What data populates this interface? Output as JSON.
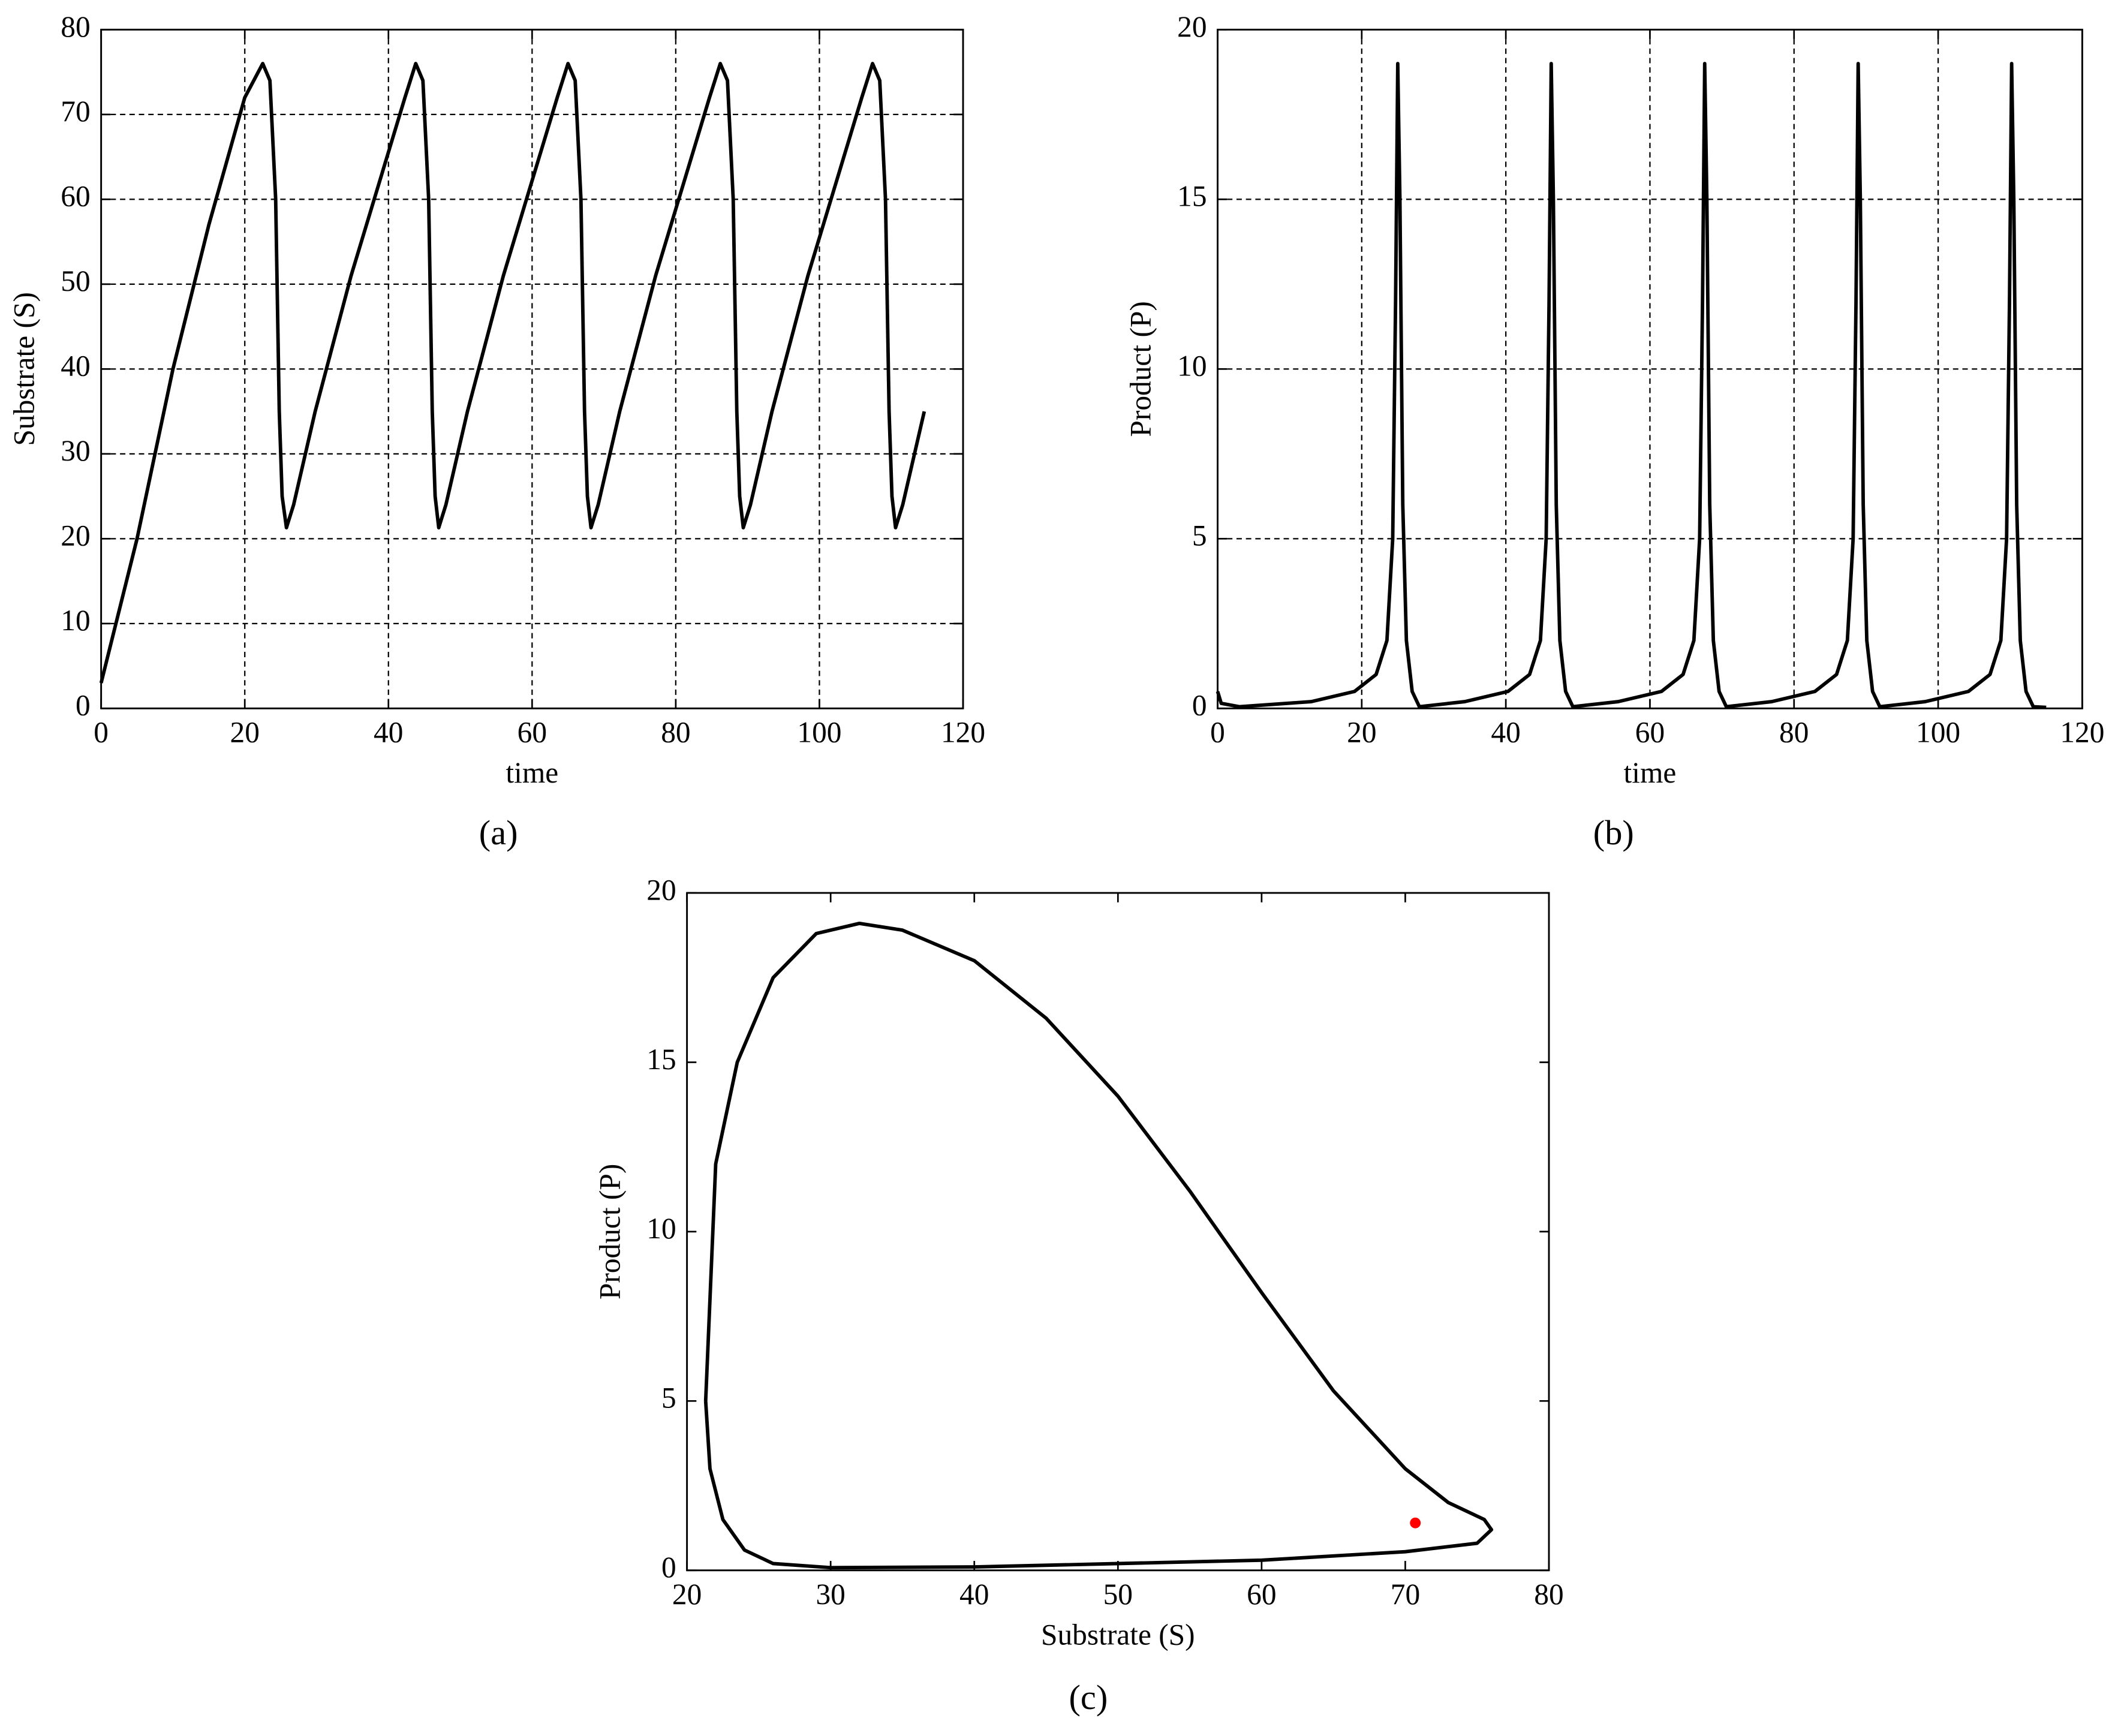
{
  "chart_data": [
    {
      "type": "line",
      "caption": "(a)",
      "xlabel": "time",
      "ylabel": "Substrate (S)",
      "xlim": [
        0,
        120
      ],
      "xticks": [
        0,
        20,
        40,
        60,
        80,
        100,
        120
      ],
      "ylim": [
        0,
        80
      ],
      "yticks": [
        0,
        10,
        20,
        30,
        40,
        50,
        60,
        70,
        80
      ],
      "grid": true,
      "color": "#000000",
      "x": [
        0,
        5,
        10,
        15,
        18,
        20,
        22.5,
        23.5,
        24.3,
        24.8,
        25.2,
        25.8,
        26.8,
        29.8,
        34.8,
        39.8,
        42.3,
        43.8,
        44.8,
        45.6,
        46.1,
        46.5,
        47.0,
        48.0,
        51.0,
        56.0,
        61.0,
        63.5,
        65.0,
        66.0,
        66.8,
        67.3,
        67.7,
        68.2,
        69.2,
        72.2,
        77.2,
        82.2,
        84.7,
        86.2,
        87.2,
        88.0,
        88.5,
        88.9,
        89.4,
        90.4,
        93.4,
        98.4,
        103.4,
        105.9,
        107.4,
        108.4,
        109.2,
        109.7,
        110.1,
        110.6,
        111.6,
        114.6
      ],
      "values": [
        3,
        20,
        40,
        57,
        66,
        72,
        76,
        74,
        60,
        35,
        25,
        21.3,
        24,
        35,
        51,
        65,
        72,
        76,
        74,
        60,
        35,
        25,
        21.3,
        24,
        35,
        51,
        65,
        72,
        76,
        74,
        60,
        35,
        25,
        21.3,
        24,
        35,
        51,
        65,
        72,
        76,
        74,
        60,
        35,
        25,
        21.3,
        24,
        35,
        51,
        65,
        72,
        76,
        74,
        60,
        35,
        25,
        21.3,
        24,
        35
      ]
    },
    {
      "type": "line",
      "caption": "(b)",
      "xlabel": "time",
      "ylabel": "Product (P)",
      "xlim": [
        0,
        120
      ],
      "xticks": [
        0,
        20,
        40,
        60,
        80,
        100,
        120
      ],
      "ylim": [
        0,
        20
      ],
      "yticks": [
        0,
        5,
        10,
        15,
        20
      ],
      "grid": true,
      "color": "#000000",
      "x": [
        0,
        0.5,
        3,
        13,
        19,
        22,
        23.5,
        24.3,
        24.7,
        25,
        25.3,
        25.7,
        26.2,
        27,
        28,
        34.3,
        40.3,
        43.3,
        44.8,
        45.6,
        46,
        46.3,
        46.6,
        47,
        47.5,
        48.3,
        49.3,
        55.6,
        61.6,
        64.6,
        66.1,
        66.9,
        67.3,
        67.6,
        67.9,
        68.3,
        68.8,
        69.6,
        70.6,
        76.9,
        82.9,
        85.9,
        87.4,
        88.2,
        88.6,
        88.9,
        89.2,
        89.6,
        90.1,
        90.9,
        91.9,
        98.2,
        104.2,
        107.2,
        108.7,
        109.5,
        109.9,
        110.2,
        110.5,
        110.9,
        111.4,
        112.2,
        113.2,
        115
      ],
      "values": [
        0.5,
        0.15,
        0.05,
        0.2,
        0.5,
        1,
        2,
        5,
        12,
        19,
        15,
        6,
        2,
        0.5,
        0.05,
        0.2,
        0.5,
        1,
        2,
        5,
        12,
        19,
        15,
        6,
        2,
        0.5,
        0.05,
        0.2,
        0.5,
        1,
        2,
        5,
        12,
        19,
        15,
        6,
        2,
        0.5,
        0.05,
        0.2,
        0.5,
        1,
        2,
        5,
        12,
        19,
        15,
        6,
        2,
        0.5,
        0.05,
        0.2,
        0.5,
        1,
        2,
        5,
        12,
        19,
        15,
        6,
        2,
        0.5,
        0.05,
        0.03
      ]
    },
    {
      "type": "line",
      "caption": "(c)",
      "xlabel": "Substrate (S)",
      "ylabel": "Product (P)",
      "xlim": [
        20,
        80
      ],
      "xticks": [
        20,
        30,
        40,
        50,
        60,
        70,
        80
      ],
      "ylim": [
        0,
        20
      ],
      "yticks": [
        0,
        5,
        10,
        15,
        20
      ],
      "grid": false,
      "color": "#000000",
      "x": [
        21.3,
        22,
        23.5,
        26,
        29,
        32,
        35,
        40,
        45,
        50,
        55,
        60,
        65,
        70,
        73,
        75.5,
        76,
        75,
        70,
        60,
        50,
        40,
        30,
        26,
        24,
        22.5,
        21.6,
        21.3
      ],
      "values": [
        5,
        12,
        15,
        17.5,
        18.8,
        19.1,
        18.9,
        18,
        16.3,
        14,
        11.2,
        8.2,
        5.3,
        3,
        2,
        1.5,
        1.2,
        0.8,
        0.55,
        0.3,
        0.2,
        0.1,
        0.08,
        0.2,
        0.6,
        1.5,
        3,
        5
      ],
      "points": [
        {
          "x": 70.7,
          "y": 1.4,
          "color": "#ff0000"
        }
      ]
    }
  ]
}
